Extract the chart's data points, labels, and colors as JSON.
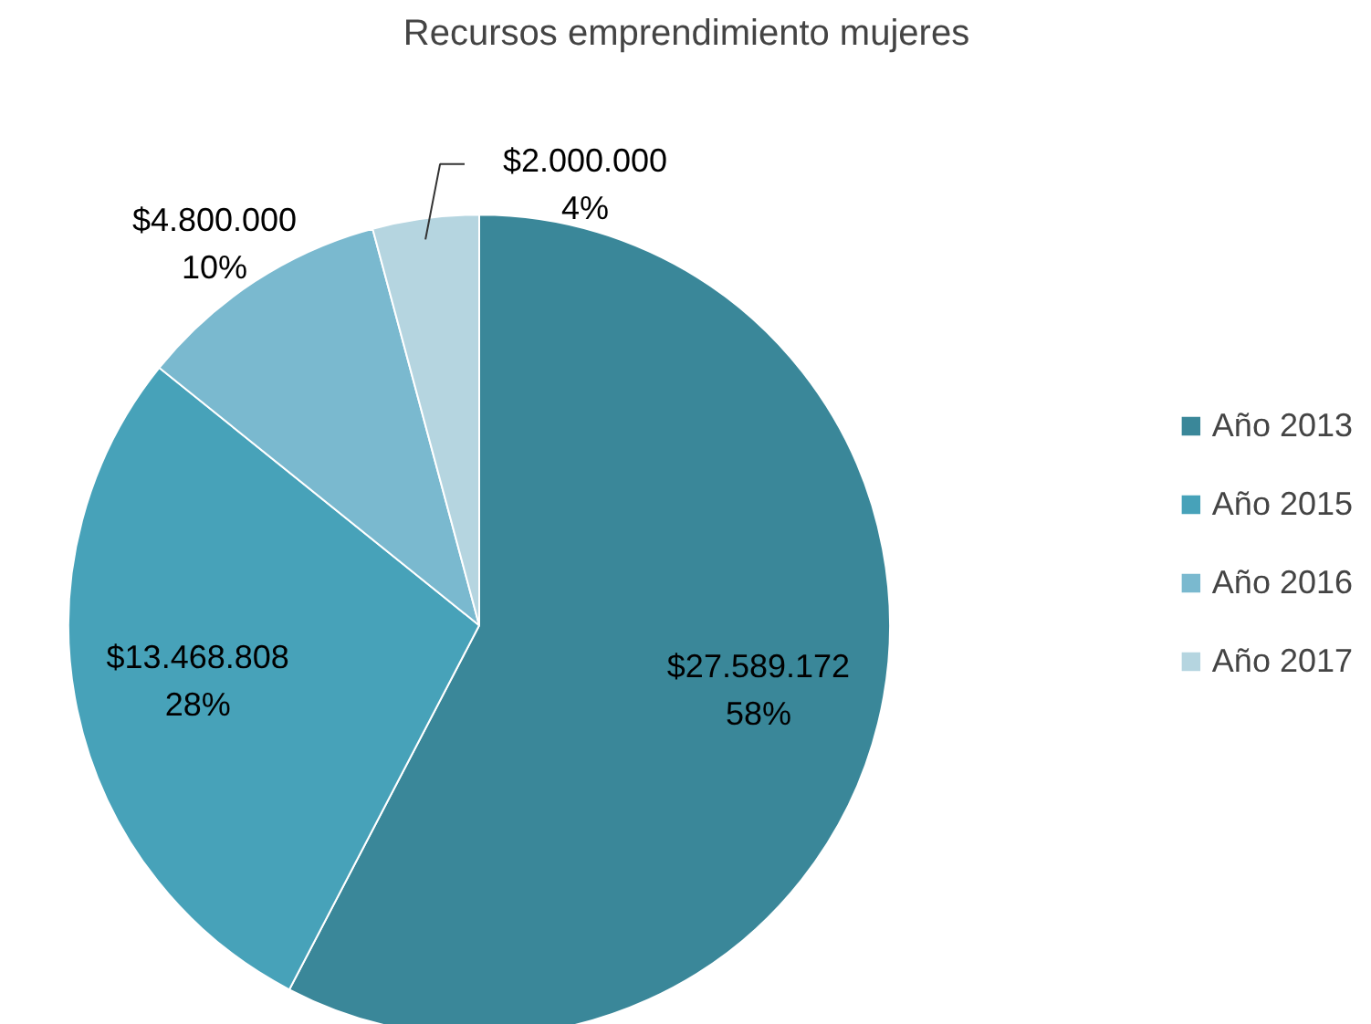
{
  "chart_data": {
    "type": "pie",
    "title": "Recursos emprendimiento mujeres",
    "categories": [
      "Año 2013",
      "Año 2015",
      "Año 2016",
      "Año 2017"
    ],
    "values": [
      27589172,
      13468808,
      4800000,
      2000000
    ],
    "colors": [
      "#3a8799",
      "#47a2b9",
      "#7ab9cf",
      "#b5d5e0"
    ],
    "value_labels": [
      "$27.589.172\n58%",
      "$13.468.808\n28%",
      "$4.800.000\n10%",
      "$2.000.000\n4%"
    ],
    "legend": "right"
  }
}
